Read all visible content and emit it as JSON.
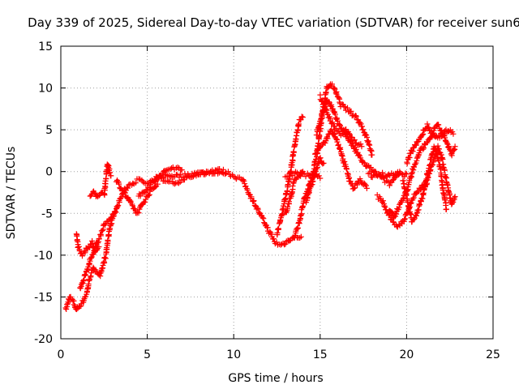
{
  "chart_data": {
    "type": "scatter",
    "title": "Day 339 of 2025, Sidereal Day-to-day VTEC variation (SDTVAR) for receiver sun6",
    "xlabel": "GPS time / hours",
    "ylabel": "SDTVAR / TECUs",
    "xlim": [
      0,
      25
    ],
    "ylim": [
      -20,
      15
    ],
    "xticks": [
      "0",
      "5",
      "10",
      "15",
      "20",
      "25"
    ],
    "yticks": [
      "-20",
      "-15",
      "-10",
      "-5",
      "0",
      "5",
      "10",
      "15"
    ],
    "grid": true,
    "marker": "plus",
    "color": "#ff0000",
    "series": [
      {
        "name": "sun6",
        "tracks": [
          [
            [
              0.3,
              -16.5
            ],
            [
              0.5,
              -15.0
            ],
            [
              0.7,
              -15.5
            ],
            [
              0.9,
              -16.5
            ],
            [
              1.1,
              -16.0
            ],
            [
              1.3,
              -15.5
            ],
            [
              1.5,
              -14.5
            ],
            [
              1.7,
              -12.5
            ],
            [
              1.9,
              -11.5
            ],
            [
              2.1,
              -12.0
            ],
            [
              2.3,
              -12.5
            ],
            [
              2.6,
              -10.0
            ],
            [
              2.8,
              -7.0
            ],
            [
              3.0,
              -5.5
            ],
            [
              3.3,
              -4.0
            ],
            [
              3.6,
              -2.5
            ],
            [
              4.0,
              -1.5
            ],
            [
              4.5,
              -1.0
            ],
            [
              5.0,
              -1.5
            ],
            [
              5.5,
              -1.0
            ],
            [
              6.0,
              -0.5
            ],
            [
              6.5,
              -0.5
            ],
            [
              7.0,
              -0.5
            ],
            [
              7.5,
              -0.3
            ],
            [
              8.0,
              -0.2
            ],
            [
              8.5,
              0.0
            ],
            [
              9.0,
              0.2
            ],
            [
              9.5,
              0.0
            ],
            [
              10.0,
              -0.5
            ],
            [
              10.5,
              -1.0
            ],
            [
              11.0,
              -3.0
            ],
            [
              11.5,
              -5.0
            ],
            [
              12.0,
              -7.0
            ],
            [
              12.4,
              -8.5
            ],
            [
              12.7,
              -8.8
            ],
            [
              13.0,
              -8.5
            ],
            [
              13.3,
              -8.0
            ],
            [
              13.6,
              -7.8
            ],
            [
              13.9,
              -7.8
            ]
          ],
          [
            [
              0.9,
              -7.5
            ],
            [
              1.0,
              -9.0
            ],
            [
              1.2,
              -10.0
            ],
            [
              1.4,
              -9.5
            ],
            [
              1.6,
              -9.0
            ],
            [
              1.8,
              -8.5
            ],
            [
              2.0,
              -9.5
            ],
            [
              2.2,
              -9.0
            ]
          ],
          [
            [
              1.7,
              -3.0
            ],
            [
              1.9,
              -2.5
            ],
            [
              2.1,
              -3.0
            ],
            [
              2.3,
              -2.5
            ],
            [
              2.5,
              -2.8
            ],
            [
              2.7,
              1.0
            ],
            [
              2.9,
              -0.5
            ]
          ],
          [
            [
              3.2,
              -1.0
            ],
            [
              3.5,
              -2.0
            ],
            [
              3.8,
              -3.0
            ],
            [
              4.1,
              -4.0
            ],
            [
              4.4,
              -5.0
            ],
            [
              4.7,
              -4.0
            ],
            [
              5.0,
              -3.0
            ],
            [
              5.3,
              -2.0
            ],
            [
              5.6,
              -1.5
            ]
          ],
          [
            [
              4.5,
              -3.0
            ],
            [
              5.0,
              -2.0
            ],
            [
              5.5,
              -1.0
            ],
            [
              6.0,
              0.0
            ],
            [
              6.5,
              0.5
            ],
            [
              7.0,
              0.2
            ]
          ],
          [
            [
              12.5,
              -7.5
            ],
            [
              12.8,
              -5.0
            ],
            [
              13.0,
              -3.0
            ],
            [
              13.2,
              -1.0
            ],
            [
              13.4,
              1.5
            ],
            [
              13.6,
              4.0
            ],
            [
              13.8,
              6.0
            ],
            [
              14.0,
              6.5
            ]
          ],
          [
            [
              13.0,
              -0.5
            ],
            [
              13.5,
              -0.2
            ],
            [
              14.0,
              -0.3
            ],
            [
              14.5,
              -0.5
            ],
            [
              14.8,
              -0.5
            ],
            [
              15.0,
              -0.8
            ]
          ],
          [
            [
              13.0,
              -5.0
            ],
            [
              13.3,
              -3.0
            ],
            [
              13.5,
              -1.0
            ],
            [
              13.8,
              -0.5
            ],
            [
              14.0,
              0.0
            ]
          ],
          [
            [
              13.5,
              -8.0
            ],
            [
              13.8,
              -6.0
            ],
            [
              14.0,
              -4.0
            ],
            [
              14.2,
              -2.5
            ],
            [
              14.4,
              -1.5
            ],
            [
              14.6,
              0.0
            ],
            [
              14.8,
              2.0
            ],
            [
              15.0,
              5.0
            ],
            [
              15.2,
              8.0
            ],
            [
              15.4,
              10.0
            ],
            [
              15.6,
              10.5
            ],
            [
              15.8,
              10.0
            ],
            [
              16.0,
              9.0
            ],
            [
              16.2,
              8.0
            ],
            [
              16.5,
              7.5
            ],
            [
              16.8,
              7.0
            ],
            [
              17.1,
              6.5
            ],
            [
              17.4,
              5.5
            ],
            [
              17.6,
              4.5
            ],
            [
              17.8,
              3.5
            ],
            [
              18.0,
              2.0
            ]
          ],
          [
            [
              14.8,
              4.5
            ],
            [
              15.0,
              6.0
            ],
            [
              15.2,
              7.5
            ],
            [
              15.4,
              8.5
            ],
            [
              15.6,
              8.0
            ],
            [
              15.8,
              7.0
            ],
            [
              16.0,
              6.0
            ],
            [
              16.3,
              5.0
            ],
            [
              16.6,
              4.0
            ],
            [
              16.9,
              3.0
            ],
            [
              17.2,
              2.0
            ],
            [
              17.5,
              1.0
            ],
            [
              17.8,
              0.5
            ],
            [
              18.1,
              0.0
            ],
            [
              18.4,
              -0.5
            ],
            [
              18.7,
              -1.0
            ],
            [
              19.0,
              -1.5
            ],
            [
              19.3,
              -0.8
            ],
            [
              19.6,
              0.0
            ]
          ],
          [
            [
              15.0,
              9.0
            ],
            [
              15.3,
              7.5
            ],
            [
              15.6,
              6.0
            ],
            [
              15.9,
              5.0
            ],
            [
              16.2,
              4.5
            ],
            [
              16.5,
              5.0
            ],
            [
              16.8,
              4.0
            ],
            [
              17.1,
              3.5
            ],
            [
              17.4,
              3.0
            ]
          ],
          [
            [
              14.7,
              2.0
            ],
            [
              15.0,
              3.0
            ],
            [
              15.3,
              3.5
            ],
            [
              15.6,
              5.0
            ],
            [
              15.9,
              4.0
            ],
            [
              16.1,
              3.0
            ],
            [
              16.3,
              1.5
            ],
            [
              16.5,
              0.5
            ],
            [
              16.7,
              -1.0
            ],
            [
              16.9,
              -2.0
            ],
            [
              17.1,
              -1.5
            ],
            [
              17.3,
              -1.0
            ],
            [
              17.5,
              -1.5
            ],
            [
              17.7,
              -2.0
            ]
          ],
          [
            [
              14.2,
              -3.5
            ],
            [
              14.4,
              -2.0
            ],
            [
              14.6,
              -1.0
            ],
            [
              14.8,
              0.5
            ],
            [
              15.0,
              1.5
            ],
            [
              15.2,
              1.0
            ]
          ],
          [
            [
              17.8,
              -0.3
            ],
            [
              18.0,
              -0.5
            ],
            [
              18.3,
              -0.2
            ],
            [
              18.6,
              -0.3
            ],
            [
              18.9,
              -0.5
            ],
            [
              19.2,
              -0.3
            ],
            [
              19.5,
              -0.2
            ],
            [
              19.8,
              -0.5
            ],
            [
              20.0,
              -0.3
            ]
          ],
          [
            [
              18.3,
              -3.0
            ],
            [
              18.6,
              -3.5
            ],
            [
              18.9,
              -5.0
            ],
            [
              19.2,
              -6.0
            ],
            [
              19.5,
              -6.5
            ],
            [
              19.8,
              -6.0
            ],
            [
              20.0,
              -5.0
            ],
            [
              20.2,
              -4.0
            ],
            [
              20.4,
              -3.0
            ],
            [
              20.6,
              -2.5
            ],
            [
              20.8,
              -2.0
            ],
            [
              21.0,
              -1.5
            ]
          ],
          [
            [
              19.0,
              -4.5
            ],
            [
              19.3,
              -5.5
            ],
            [
              19.5,
              -4.5
            ],
            [
              19.7,
              -3.5
            ],
            [
              20.0,
              -2.5
            ],
            [
              20.2,
              -1.0
            ],
            [
              20.4,
              0.5
            ],
            [
              20.6,
              1.5
            ],
            [
              20.8,
              2.5
            ],
            [
              21.0,
              3.0
            ],
            [
              21.2,
              3.5
            ],
            [
              21.4,
              4.0
            ],
            [
              21.6,
              5.0
            ],
            [
              21.8,
              5.5
            ],
            [
              22.0,
              5.0
            ],
            [
              22.2,
              4.0
            ],
            [
              22.4,
              3.0
            ],
            [
              22.6,
              2.0
            ],
            [
              22.8,
              3.0
            ]
          ],
          [
            [
              20.0,
              1.0
            ],
            [
              20.3,
              2.5
            ],
            [
              20.6,
              3.5
            ],
            [
              20.9,
              4.5
            ],
            [
              21.2,
              5.5
            ],
            [
              21.5,
              4.5
            ],
            [
              21.8,
              4.0
            ],
            [
              22.1,
              4.5
            ],
            [
              22.4,
              5.0
            ],
            [
              22.7,
              4.5
            ]
          ],
          [
            [
              19.8,
              -1.0
            ],
            [
              20.0,
              -3.0
            ],
            [
              20.3,
              -6.0
            ],
            [
              20.6,
              -5.0
            ],
            [
              20.9,
              -3.0
            ],
            [
              21.2,
              -1.0
            ],
            [
              21.5,
              1.0
            ],
            [
              21.8,
              3.0
            ],
            [
              22.0,
              2.0
            ],
            [
              22.2,
              0.0
            ],
            [
              22.4,
              -2.0
            ],
            [
              22.6,
              -4.0
            ],
            [
              22.8,
              -3.0
            ]
          ],
          [
            [
              21.0,
              -2.0
            ],
            [
              21.3,
              0.5
            ],
            [
              21.6,
              3.0
            ],
            [
              21.9,
              1.0
            ],
            [
              22.1,
              -2.0
            ],
            [
              22.3,
              -4.5
            ]
          ],
          [
            [
              5.5,
              -0.5
            ],
            [
              6.0,
              -1.0
            ],
            [
              6.5,
              -1.5
            ],
            [
              7.0,
              -1.0
            ],
            [
              7.5,
              -0.5
            ],
            [
              8.0,
              -0.3
            ],
            [
              8.5,
              -0.2
            ],
            [
              9.0,
              0.0
            ],
            [
              9.5,
              -0.3
            ]
          ],
          [
            [
              1.1,
              -14.0
            ],
            [
              1.3,
              -13.0
            ],
            [
              1.5,
              -12.0
            ],
            [
              1.7,
              -10.5
            ],
            [
              1.9,
              -9.5
            ],
            [
              2.1,
              -8.5
            ],
            [
              2.3,
              -7.5
            ],
            [
              2.5,
              -6.5
            ],
            [
              2.7,
              -6.0
            ],
            [
              2.9,
              -5.5
            ],
            [
              3.1,
              -5.0
            ]
          ]
        ]
      }
    ]
  }
}
